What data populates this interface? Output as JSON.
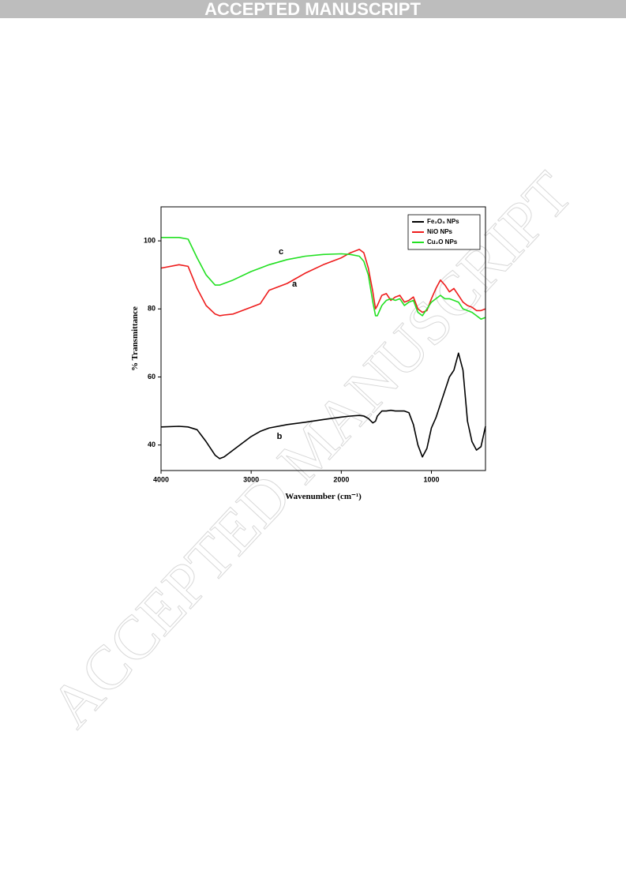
{
  "banner": "ACCEPTED MANUSCRIPT",
  "watermark": "ACCEPTED MANUSCRIPT",
  "chart_data": {
    "type": "line",
    "xlabel": "Wavenumber (cm⁻¹)",
    "ylabel": "% Transmittance",
    "xlim": [
      4000,
      400
    ],
    "ylim": [
      32.5,
      110
    ],
    "xticks": [
      4000,
      3000,
      2000,
      1000
    ],
    "yticks": [
      40,
      60,
      80,
      100
    ],
    "legend": "upper right",
    "annotations": [
      "a",
      "b",
      "c"
    ],
    "x": [
      4000,
      3800,
      3700,
      3600,
      3500,
      3400,
      3350,
      3300,
      3200,
      3000,
      2900,
      2800,
      2600,
      2400,
      2200,
      2000,
      1900,
      1800,
      1750,
      1700,
      1650,
      1620,
      1600,
      1550,
      1500,
      1450,
      1400,
      1350,
      1300,
      1250,
      1200,
      1150,
      1100,
      1050,
      1000,
      950,
      900,
      850,
      800,
      750,
      700,
      650,
      600,
      550,
      500,
      450,
      400
    ],
    "series": [
      {
        "name": "Fe₂O₃ NPs",
        "color": "#000000",
        "values": [
          45.3,
          45.5,
          45.3,
          44.5,
          41,
          37,
          36,
          36.5,
          38.5,
          42.5,
          44,
          45,
          46,
          46.7,
          47.5,
          48.2,
          48.5,
          48.7,
          48.5,
          47.8,
          46.5,
          47,
          48.5,
          50,
          50,
          50.2,
          50,
          50,
          50,
          49.5,
          46,
          40,
          36.5,
          39,
          45,
          48,
          52,
          56,
          60,
          62,
          67,
          62,
          47,
          41,
          38.5,
          39.5,
          45.5
        ]
      },
      {
        "name": "NiO NPs",
        "color": "#ee1c1c",
        "values": [
          92,
          93,
          92.5,
          86,
          81,
          78.5,
          78,
          78.2,
          78.5,
          80.5,
          81.5,
          85.5,
          87.5,
          90.5,
          93,
          95,
          96.5,
          97.5,
          96.5,
          92,
          85,
          80,
          81,
          84,
          84.5,
          82.5,
          83.5,
          84,
          82,
          82.5,
          83.5,
          80,
          79,
          79.5,
          83,
          86,
          88.5,
          87,
          85,
          86,
          84,
          82,
          81,
          80.5,
          79.5,
          79.5,
          80
        ]
      },
      {
        "name": "Cu₂O NPs",
        "color": "#22e022",
        "values": [
          101,
          101,
          100.5,
          95,
          90,
          87,
          87,
          87.5,
          88.5,
          91,
          92,
          93,
          94.5,
          95.5,
          96,
          96.2,
          96,
          95.5,
          94,
          90,
          82,
          78,
          78,
          81,
          82.5,
          83,
          82.5,
          83,
          81,
          82,
          82.5,
          79,
          78,
          80,
          82,
          83,
          84,
          83,
          83,
          82.5,
          82,
          80,
          79.5,
          79,
          78,
          77,
          77.5
        ]
      }
    ]
  }
}
